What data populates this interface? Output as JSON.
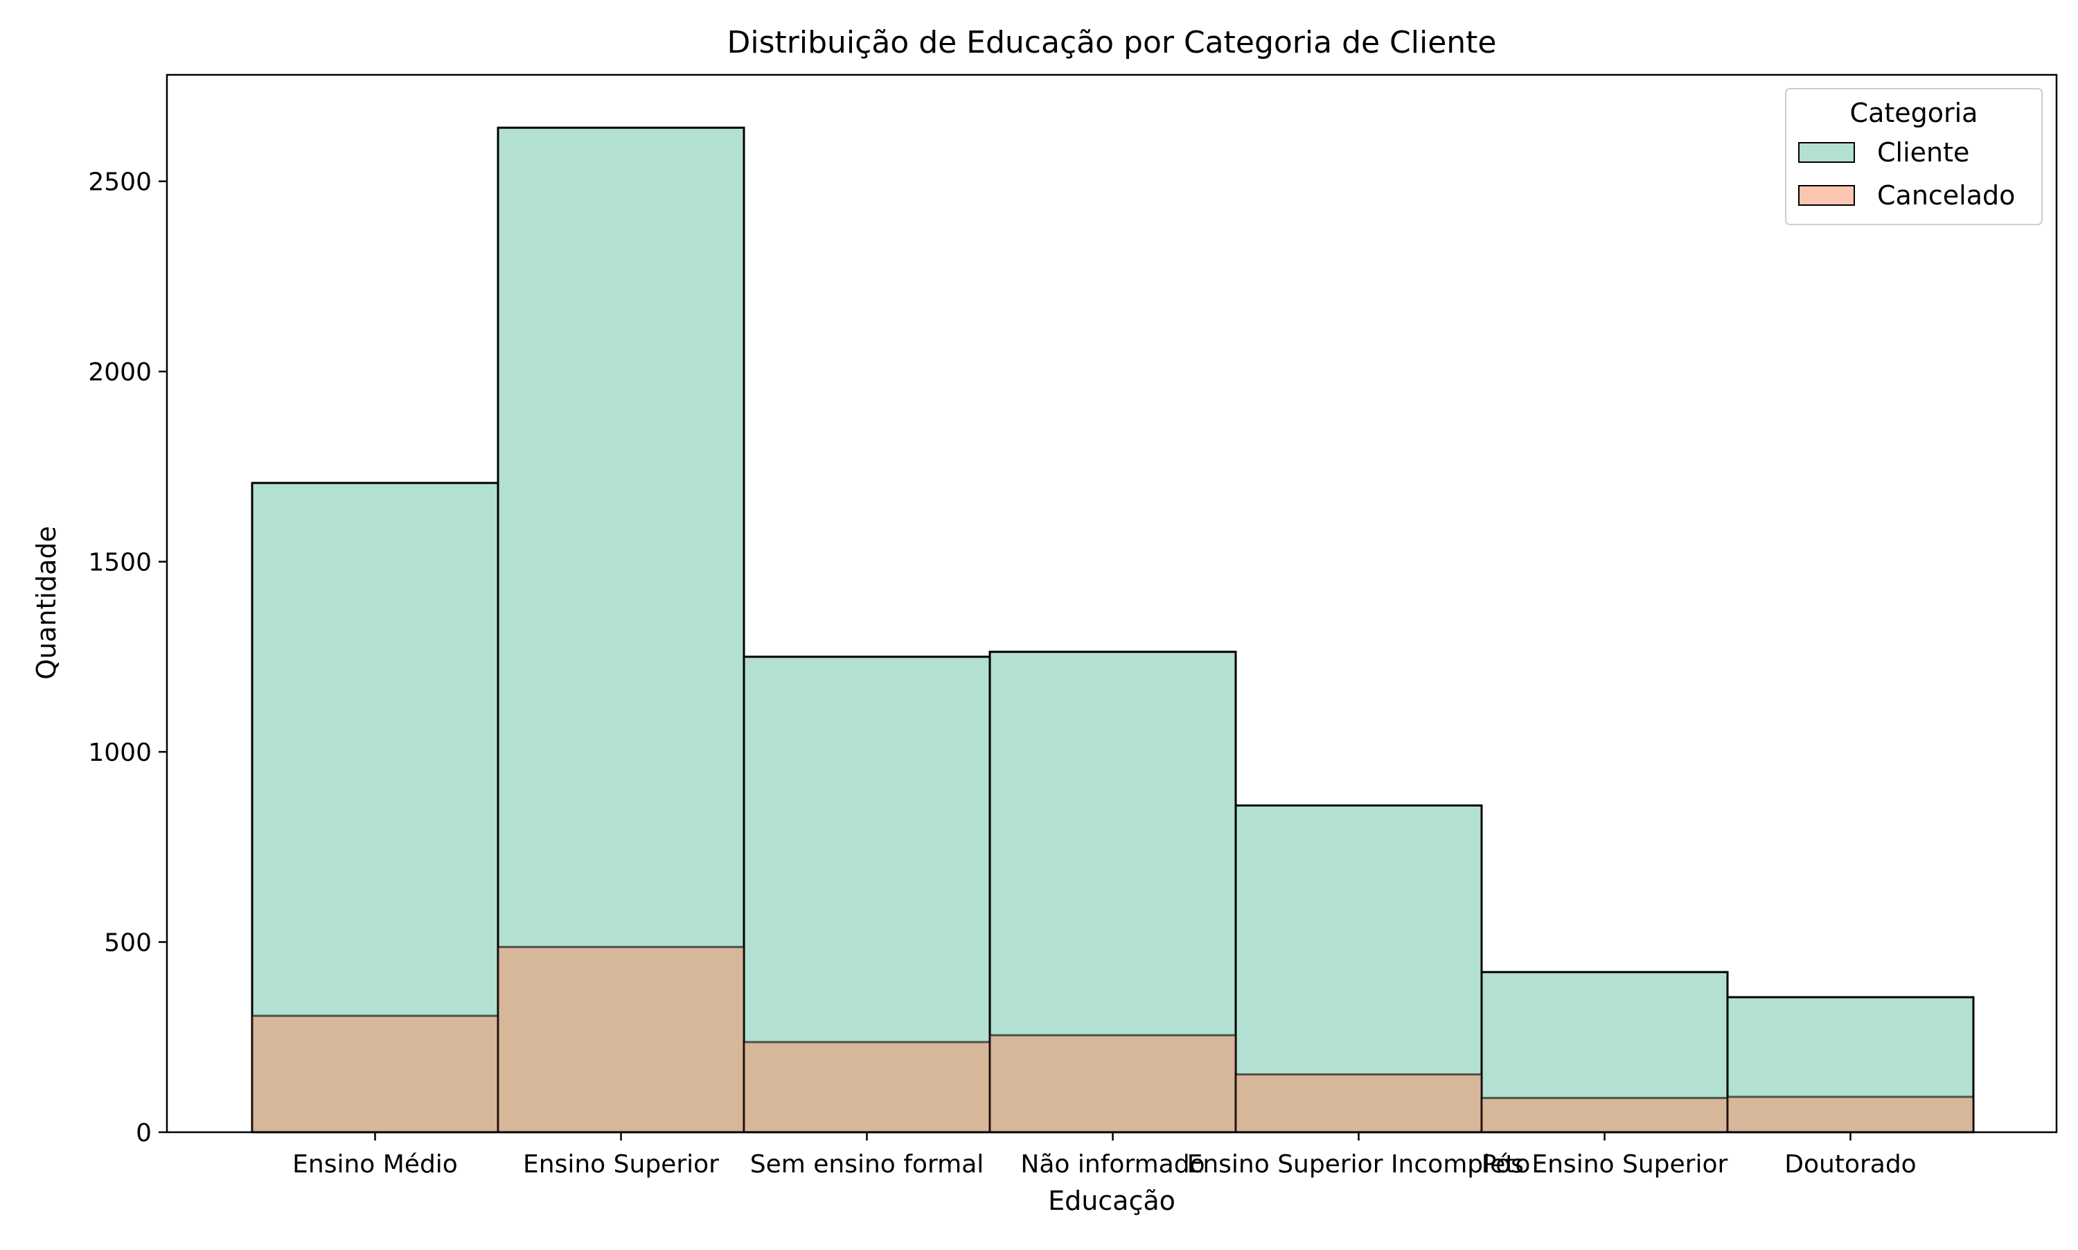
{
  "chart_data": {
    "type": "bar",
    "title": "Distribuição de Educação por Categoria de Cliente",
    "xlabel": "Educação",
    "ylabel": "Quantidade",
    "categories": [
      "Ensino Médio",
      "Ensino Superior",
      "Sem ensino formal",
      "Não informado",
      "Ensino Superior Incompleto",
      "Pós Ensino Superior",
      "Doutorado"
    ],
    "series": [
      {
        "name": "Cliente",
        "values": [
          1707,
          2641,
          1250,
          1263,
          859,
          421,
          355
        ],
        "color": "#66c2a5"
      },
      {
        "name": "Cancelado",
        "values": [
          306,
          487,
          237,
          255,
          152,
          90,
          93
        ],
        "color": "#fc8d62"
      }
    ],
    "ylim": [
      0,
      2780
    ],
    "yticks": [
      0,
      500,
      1000,
      1500,
      2000,
      2500
    ],
    "legend_title": "Categoria",
    "legend_position": "top-right",
    "grid": false
  }
}
